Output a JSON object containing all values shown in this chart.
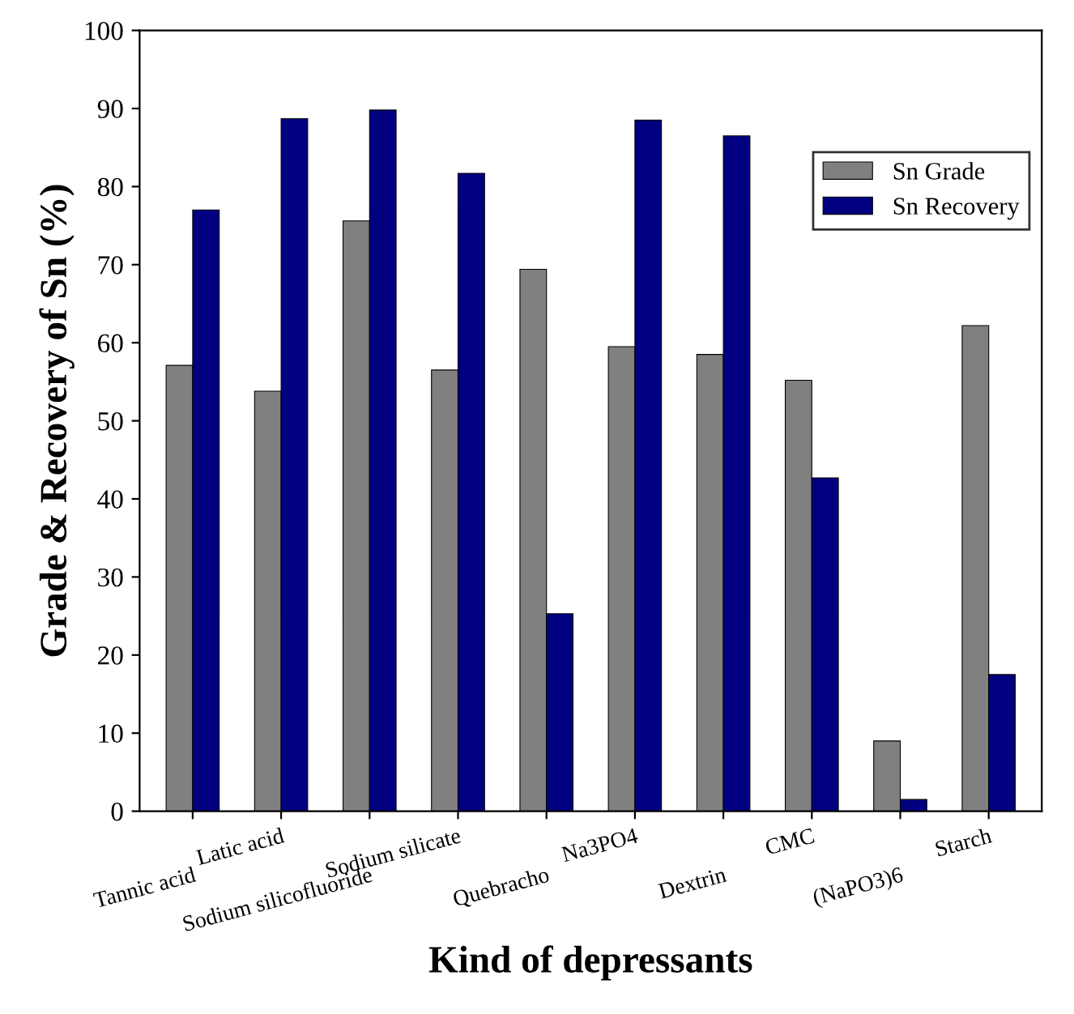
{
  "chart_data": {
    "type": "bar",
    "xlabel": "Kind of depressants",
    "ylabel": "Grade & Recovery of Sn (%)",
    "categories": [
      "Tannic acid",
      "Latic acid",
      "Sodium silicofluoride",
      "Sodium silicate",
      "Quebracho",
      "Na3PO4",
      "Dextrin",
      "CMC",
      "(NaPO3)6",
      "Starch"
    ],
    "series": [
      {
        "name": "Sn Grade",
        "color": "#808080",
        "values": [
          57.1,
          53.8,
          75.6,
          56.5,
          69.4,
          59.5,
          58.5,
          55.2,
          9.0,
          62.2
        ]
      },
      {
        "name": "Sn Recovery",
        "color": "#000080",
        "values": [
          77.0,
          88.7,
          89.8,
          81.7,
          25.3,
          88.5,
          86.5,
          42.7,
          1.5,
          17.5
        ]
      }
    ],
    "ylim": [
      0,
      100
    ],
    "yticks": [
      0,
      10,
      20,
      30,
      40,
      50,
      60,
      70,
      80,
      90,
      100
    ],
    "grid": false,
    "legend": "top right"
  }
}
